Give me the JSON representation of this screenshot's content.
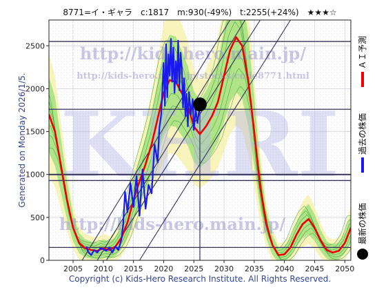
{
  "header": {
    "title": "8771=イ・ギャラ　c:1817　m:930(-49%)　t:2255(+24%)　★★★☆"
  },
  "side_note": "Generated on Monday 2026/1/5.",
  "footer": "Copyright (c) Kids-Hero Research Institute. All Rights Reserved.",
  "watermark": {
    "big": "KHRI",
    "url1": "http://kids-hero.main.jp/",
    "url2": "http://kids-hero.main.jp/stocks/code8771.html",
    "url3": "http://kids-hero.main.jp/"
  },
  "legend": [
    {
      "label": "ＡＩ予測",
      "color": "#ee0000",
      "marker": "line"
    },
    {
      "label": "過去の株価",
      "color": "#1a1aee",
      "marker": "line"
    },
    {
      "label": "最新の株価",
      "color": "#000000",
      "marker": "dot"
    }
  ],
  "colors": {
    "ai_forecast": "#ee0000",
    "past_price": "#1a1aee",
    "latest_dot": "#000000",
    "band_green": "#99dd77",
    "band_yellow": "#f7f2b0",
    "guide_line": "#33335a"
  },
  "chart_data": {
    "type": "line",
    "title": "8771=イ・ギャラ　c:1817　m:930(-49%)　t:2255(+24%)　★★★☆",
    "xlim": [
      2001,
      2051
    ],
    "ylim": [
      0,
      2800
    ],
    "x_ticks": [
      2005,
      2010,
      2015,
      2020,
      2025,
      2030,
      2035,
      2040,
      2045,
      2050
    ],
    "y_ticks": [
      0,
      500,
      1000,
      1500,
      2000,
      2500
    ],
    "grid": true,
    "horizontal_levels": [
      150,
      930,
      1000,
      1760,
      2550
    ],
    "latest_point": {
      "x": 2026.0,
      "y": 1817
    },
    "series": [
      {
        "name": "ＡＩ予測",
        "x": [
          2001,
          2002,
          2003,
          2004,
          2005,
          2006,
          2007,
          2008,
          2009,
          2010,
          2011,
          2012,
          2013,
          2014,
          2015,
          2016,
          2017,
          2018,
          2019,
          2020,
          2021,
          2022,
          2023,
          2024,
          2025,
          2026,
          2027,
          2028,
          2029,
          2030,
          2031,
          2032,
          2033,
          2034,
          2035,
          2036,
          2037,
          2038,
          2039,
          2040,
          2041,
          2042,
          2043,
          2044,
          2045,
          2046,
          2047,
          2048,
          2049,
          2050,
          2051
        ],
        "values": [
          1700,
          1500,
          1100,
          700,
          380,
          200,
          140,
          120,
          110,
          140,
          120,
          160,
          260,
          440,
          700,
          920,
          1120,
          1350,
          1650,
          1950,
          2100,
          2080,
          1950,
          1800,
          1560,
          1470,
          1560,
          1680,
          1850,
          2150,
          2450,
          2600,
          2500,
          2100,
          1500,
          850,
          420,
          180,
          60,
          70,
          150,
          300,
          420,
          480,
          380,
          230,
          120,
          90,
          110,
          200,
          380
        ]
      },
      {
        "name": "過去の株価",
        "x": [
          2007.2,
          2007.5,
          2008,
          2008.5,
          2009,
          2009.5,
          2010,
          2010.5,
          2011,
          2011.5,
          2012,
          2012.5,
          2013,
          2013.3,
          2013.6,
          2014,
          2014.5,
          2015,
          2015.5,
          2016,
          2016.5,
          2017,
          2017.5,
          2018,
          2018.5,
          2019,
          2019.3,
          2019.6,
          2020,
          2020.2,
          2020.4,
          2020.6,
          2020.8,
          2021,
          2021.2,
          2021.4,
          2021.6,
          2021.8,
          2022,
          2022.2,
          2022.4,
          2022.6,
          2022.8,
          2023,
          2023.2,
          2023.4,
          2023.6,
          2023.8,
          2024,
          2024.2,
          2024.5,
          2024.8,
          2025,
          2025.3,
          2025.6,
          2026
        ],
        "values": [
          160,
          100,
          60,
          120,
          90,
          140,
          130,
          110,
          150,
          90,
          160,
          120,
          240,
          420,
          800,
          560,
          900,
          620,
          980,
          520,
          1060,
          600,
          880,
          780,
          1350,
          1140,
          1550,
          1700,
          2300,
          1800,
          2520,
          1900,
          2400,
          2150,
          2580,
          2080,
          2480,
          1950,
          2320,
          2060,
          2560,
          1980,
          2420,
          2250,
          1780,
          2120,
          1680,
          1940,
          1560,
          1960,
          1700,
          1880,
          1520,
          1760,
          1600,
          1817
        ]
      }
    ]
  }
}
